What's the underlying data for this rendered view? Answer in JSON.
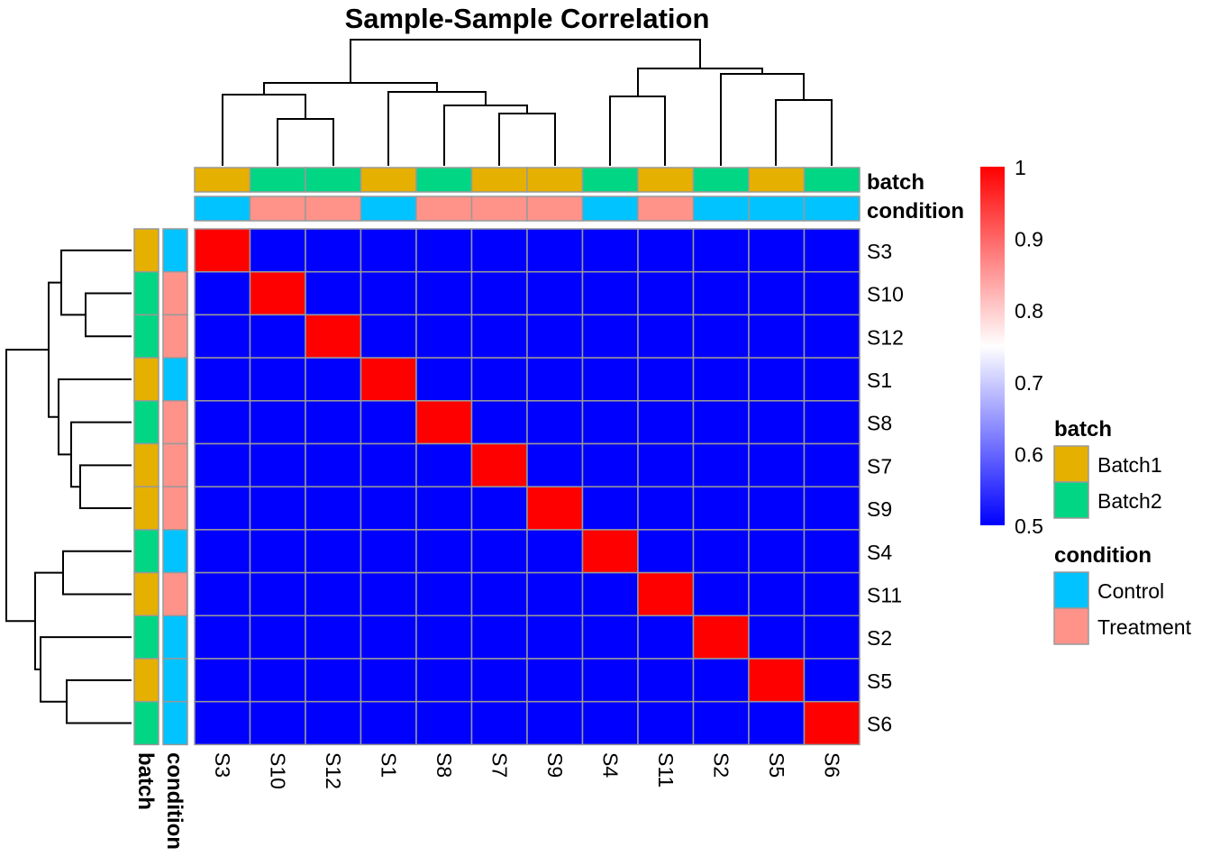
{
  "chart_data": {
    "type": "heatmap",
    "title": "Sample-Sample Correlation",
    "columns": [
      "S3",
      "S10",
      "S12",
      "S1",
      "S8",
      "S7",
      "S9",
      "S4",
      "S11",
      "S2",
      "S5",
      "S6"
    ],
    "rows": [
      "S3",
      "S10",
      "S12",
      "S1",
      "S8",
      "S7",
      "S9",
      "S4",
      "S11",
      "S2",
      "S5",
      "S6"
    ],
    "diagonal_value": 1,
    "off_diagonal_value": 0.5,
    "color_scale": {
      "min": 0.5,
      "max": 1,
      "low": "#0000FF",
      "mid": "#FFFFFF",
      "high": "#FF0000",
      "ticks": [
        "1",
        "0.9",
        "0.8",
        "0.7",
        "0.6",
        "0.5"
      ]
    },
    "annotations": {
      "batch_label": "batch",
      "condition_label": "condition",
      "batch": [
        "Batch1",
        "Batch2",
        "Batch2",
        "Batch1",
        "Batch2",
        "Batch1",
        "Batch1",
        "Batch2",
        "Batch1",
        "Batch2",
        "Batch1",
        "Batch2"
      ],
      "condition": [
        "Control",
        "Treatment",
        "Treatment",
        "Control",
        "Treatment",
        "Treatment",
        "Treatment",
        "Control",
        "Treatment",
        "Control",
        "Control",
        "Control"
      ]
    },
    "legend": {
      "batch_title": "batch",
      "batch_items": [
        {
          "label": "Batch1",
          "color": "#E6B000"
        },
        {
          "label": "Batch2",
          "color": "#00D683"
        }
      ],
      "condition_title": "condition",
      "condition_items": [
        {
          "label": "Control",
          "color": "#00C3FF"
        },
        {
          "label": "Treatment",
          "color": "#FF938A"
        }
      ]
    }
  }
}
